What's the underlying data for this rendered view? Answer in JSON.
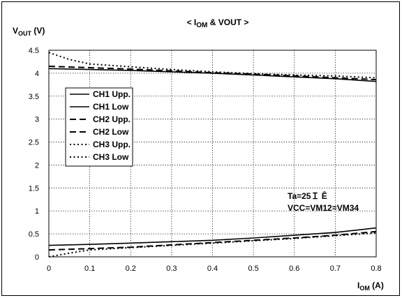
{
  "chart_data": {
    "type": "line",
    "title": "< I_OM & VOUT >",
    "title_parts": {
      "prefix": "< I",
      "sub": "OM",
      "suffix": " & VOUT >"
    },
    "ylabel": {
      "main": "V",
      "sub": "OUT",
      "unit": " (V)"
    },
    "xlabel": {
      "main": "I",
      "sub": "OM",
      "unit": " (A)"
    },
    "xlim": [
      0,
      0.8
    ],
    "ylim": [
      0,
      4.5
    ],
    "xticks": [
      "0",
      "0.1",
      "0.2",
      "0.3",
      "0.4",
      "0.5",
      "0.6",
      "0.7",
      "0.8"
    ],
    "yticks": [
      "0",
      "0.5",
      "1",
      "1.5",
      "2",
      "2.5",
      "3",
      "3.5",
      "4",
      "4.5"
    ],
    "grid": true,
    "legend_position": "left",
    "annotation_lines": [
      "Ta=25Ｉ Ê",
      "VCC=VM12=VM34"
    ],
    "series": [
      {
        "name": "CH1 Upp.",
        "style": "solid",
        "x": [
          0,
          0.1,
          0.2,
          0.3,
          0.4,
          0.5,
          0.6,
          0.7,
          0.8
        ],
        "y": [
          4.1,
          4.08,
          4.06,
          4.03,
          4.0,
          3.96,
          3.92,
          3.88,
          3.82
        ]
      },
      {
        "name": "CH1 Low",
        "style": "solid",
        "x": [
          0,
          0.1,
          0.2,
          0.3,
          0.4,
          0.5,
          0.6,
          0.7,
          0.8
        ],
        "y": [
          0.25,
          0.27,
          0.3,
          0.33,
          0.36,
          0.41,
          0.47,
          0.53,
          0.63
        ]
      },
      {
        "name": "CH2 Upp.",
        "style": "dashed",
        "x": [
          0,
          0.1,
          0.2,
          0.3,
          0.4,
          0.5,
          0.6,
          0.7,
          0.8
        ],
        "y": [
          4.15,
          4.12,
          4.09,
          4.05,
          4.01,
          3.98,
          3.94,
          3.9,
          3.86
        ]
      },
      {
        "name": "CH2 Low",
        "style": "dashed",
        "x": [
          0,
          0.1,
          0.2,
          0.3,
          0.4,
          0.5,
          0.6,
          0.7,
          0.8
        ],
        "y": [
          0.15,
          0.18,
          0.21,
          0.26,
          0.31,
          0.36,
          0.41,
          0.47,
          0.55
        ]
      },
      {
        "name": "CH3 Upp.",
        "style": "dotted",
        "x": [
          0,
          0.05,
          0.1,
          0.2,
          0.3,
          0.4,
          0.5,
          0.6,
          0.7,
          0.8
        ],
        "y": [
          4.45,
          4.3,
          4.2,
          4.14,
          4.08,
          4.03,
          3.99,
          3.96,
          3.94,
          3.9
        ]
      },
      {
        "name": "CH3 Low",
        "style": "dotted",
        "x": [
          0,
          0.05,
          0.1,
          0.2,
          0.3,
          0.4,
          0.5,
          0.6,
          0.7,
          0.8
        ],
        "y": [
          0.0,
          0.08,
          0.15,
          0.2,
          0.25,
          0.3,
          0.35,
          0.4,
          0.46,
          0.52
        ]
      }
    ]
  }
}
